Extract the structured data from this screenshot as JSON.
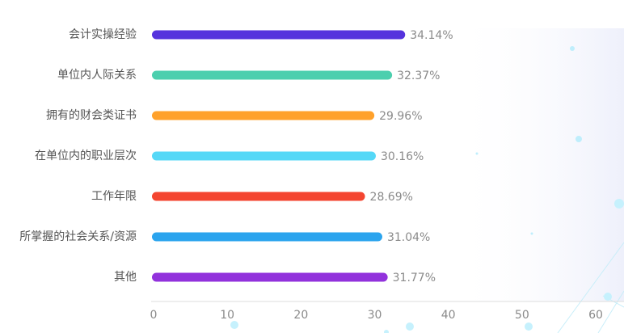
{
  "chart_data": {
    "type": "bar",
    "orientation": "horizontal",
    "categories": [
      "会计实操经验",
      "单位内人际关系",
      "拥有的财会类证书",
      "在单位内的职业层次",
      "工作年限",
      "所掌握的社会关系/资源",
      "其他"
    ],
    "values": [
      34.14,
      32.37,
      29.96,
      30.16,
      28.69,
      31.04,
      31.77
    ],
    "value_labels": [
      "34.14%",
      "32.37%",
      "29.96%",
      "30.16%",
      "28.69%",
      "31.04%",
      "31.77%"
    ],
    "colors": [
      "#5533dd",
      "#4ccfae",
      "#ffa12b",
      "#55d8f7",
      "#f44530",
      "#2ba4ee",
      "#9232dc"
    ],
    "xlim": [
      0,
      60
    ],
    "xticks": [
      0,
      10,
      20,
      30,
      40,
      50,
      60
    ],
    "xtick_labels": [
      "0",
      "10",
      "20",
      "30",
      "40",
      "50",
      "60"
    ],
    "title": "",
    "xlabel": "",
    "ylabel": "",
    "grid": false,
    "legend": "none"
  }
}
